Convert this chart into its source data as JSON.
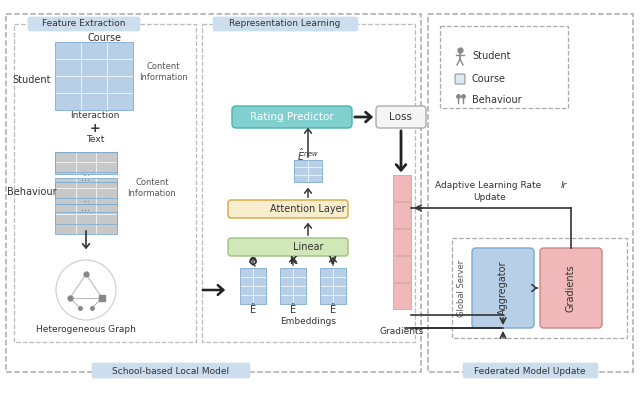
{
  "bg_color": "#ffffff",
  "dashed_border_color": "#aaaaaa",
  "section_label_bg": "#ccdded",
  "feature_extraction_label": "Feature Extraction",
  "representation_learning_label": "Representation Learning",
  "school_model_label": "School-based Local Model",
  "federated_label": "Federated Model Update",
  "course_label": "Course",
  "student_label": "Student",
  "content_info1_label": "Content\nInformation",
  "interaction_label": "Interaction",
  "plus_label": "+",
  "text_label": "Text",
  "behaviour_label": "Behaviour",
  "content_info2_label": "Content\nInformation",
  "hetero_graph_label": "Heterogeneous Graph",
  "rating_predictor_label": "Rating Predictor",
  "loss_label": "Loss",
  "attention_layer_label": "Attention Layer",
  "linear_label": "Linear",
  "embeddings_label": "Embeddings",
  "gradients_col_label": "Gradients",
  "adaptive_lr_label": "Adaptive Learning Rate ",
  "adaptive_lr_italic": "lr",
  "update_label": "Update",
  "global_server_label": "Global Server",
  "aggregator_label": "Aggregator",
  "gradients2_label": "Gradients",
  "legend_student": "Student",
  "legend_course": "Course",
  "legend_behaviour": "Behaviour",
  "interaction_matrix_color": "#b8cfe8",
  "behaviour_matrix_color": "#d0d0d0",
  "embedding_color": "#b8cfe8",
  "enew_color": "#b8cfe8",
  "rating_box_color": "#80d0d0",
  "loss_box_color": "#f0f0f0",
  "attention_box_color": "#f8edcc",
  "linear_box_color": "#d0e8b8",
  "gradient_bar_color": "#f0b8b8",
  "aggregator_box_color": "#b8cfe8",
  "gradients_box_color": "#f0b8b8",
  "section_label_color": "#ccdded",
  "arrow_color": "#444444"
}
